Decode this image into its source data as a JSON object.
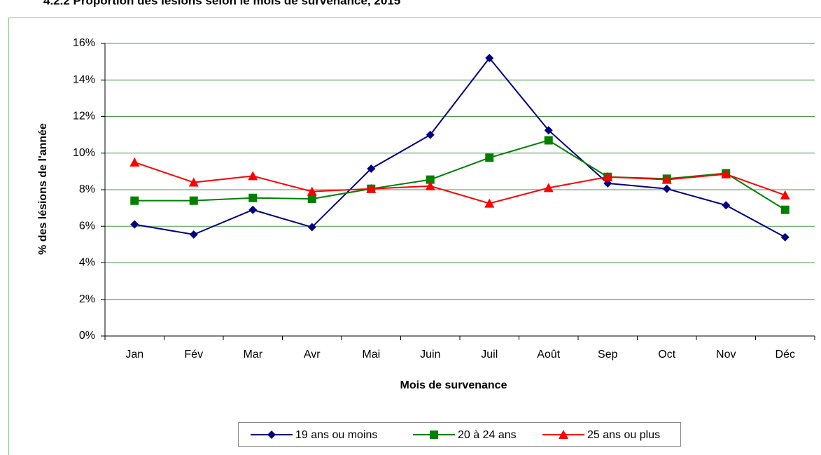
{
  "chart_data": {
    "type": "line",
    "title": "4.2.2     Proportion des lésions selon le mois de survenance, 2015",
    "xlabel": "Mois de survenance",
    "ylabel": "% des lésions de l'année",
    "categories": [
      "Jan",
      "Fév",
      "Mar",
      "Avr",
      "Mai",
      "Juin",
      "Juil",
      "Août",
      "Sep",
      "Oct",
      "Nov",
      "Déc"
    ],
    "series": [
      {
        "name": "19 ans ou moins",
        "color": "#000080",
        "marker": "diamond",
        "values": [
          6.1,
          5.55,
          6.9,
          5.95,
          9.15,
          11.0,
          15.2,
          11.25,
          8.35,
          8.05,
          7.15,
          5.4
        ]
      },
      {
        "name": "20 à 24 ans",
        "color": "#008000",
        "marker": "square",
        "values": [
          7.4,
          7.4,
          7.55,
          7.5,
          8.05,
          8.55,
          9.75,
          10.7,
          8.7,
          8.6,
          8.9,
          6.9
        ]
      },
      {
        "name": "25 ans ou plus",
        "color": "#ff0000",
        "marker": "triangle",
        "values": [
          9.5,
          8.4,
          8.75,
          7.9,
          8.05,
          8.2,
          7.25,
          8.1,
          8.7,
          8.55,
          8.85,
          7.7
        ]
      }
    ],
    "ylim": [
      0,
      16
    ],
    "yticks": [
      {
        "value": 0,
        "label": "0%"
      },
      {
        "value": 2,
        "label": "2%"
      },
      {
        "value": 4,
        "label": "4%"
      },
      {
        "value": 6,
        "label": "6%"
      },
      {
        "value": 8,
        "label": "8%"
      },
      {
        "value": 10,
        "label": "10%"
      },
      {
        "value": 12,
        "label": "12%"
      },
      {
        "value": 14,
        "label": "14%"
      },
      {
        "value": 16,
        "label": "16%"
      }
    ],
    "grid": true,
    "legend": "bottom"
  }
}
